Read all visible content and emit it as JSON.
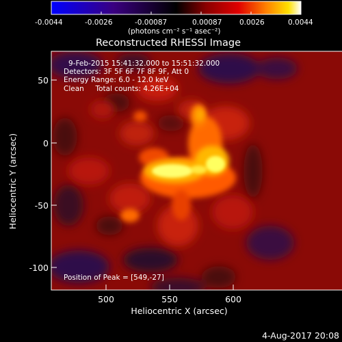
{
  "colorbar": {
    "ticks": [
      "-0.0044",
      "-0.0026",
      "-0.00087",
      "0.00087",
      "0.0026",
      "0.0044"
    ],
    "unit_label": "(photons cm⁻² s⁻¹ asec⁻²)"
  },
  "title": "Reconstructed RHESSI Image",
  "info": {
    "time_range": "9-Feb-2015 15:41:32.000 to 15:51:32.000",
    "detectors": "Detectors: 3F 5F 6F 7F 8F 9F, Att 0",
    "energy_range": "Energy Range: 6.0 - 12.0 keV",
    "method_counts": "Clean     Total counts: 4.26E+04",
    "peak": "Position of Peak = [549,-27]"
  },
  "axes": {
    "xlabel": "Heliocentric X (arcsec)",
    "ylabel": "Heliocentric Y (arcsec)",
    "xticks": [
      "500",
      "550",
      "600"
    ],
    "yticks": [
      "50",
      "0",
      "-50",
      "-100"
    ]
  },
  "footer_date": "4-Aug-2017 20:08",
  "colors": {
    "background": "#000000",
    "colormap": [
      "#0000ff",
      "#3a0080",
      "#000000",
      "#7a0000",
      "#e00000",
      "#ff7a00",
      "#ffd000",
      "#ffffff"
    ]
  }
}
